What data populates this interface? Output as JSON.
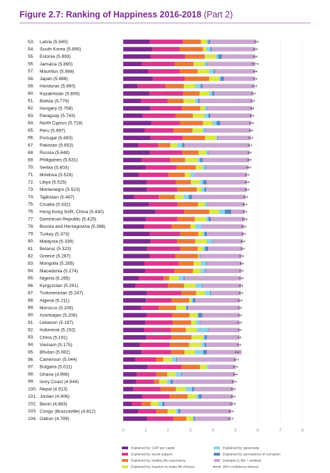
{
  "chart_data": {
    "type": "stacked-bar-horizontal",
    "title": "Figure 2.7: Ranking of Happiness 2016-2018",
    "title_suffix": "(Part 2)",
    "ranks": [
      "53.",
      "54.",
      "55.",
      "56.",
      "57.",
      "58.",
      "59.",
      "60.",
      "61.",
      "62.",
      "63.",
      "64.",
      "65.",
      "66.",
      "67.",
      "68.",
      "69.",
      "70.",
      "71.",
      "72.",
      "73.",
      "74.",
      "75.",
      "76.",
      "77.",
      "78.",
      "79.",
      "80.",
      "81.",
      "82.",
      "83.",
      "84.",
      "85.",
      "86.",
      "87.",
      "88.",
      "89.",
      "90.",
      "91.",
      "92.",
      "93.",
      "94.",
      "95.",
      "96.",
      "97.",
      "98.",
      "99.",
      "100.",
      "101.",
      "102.",
      "103.",
      "104."
    ],
    "categories": [
      "Latvia",
      "South Korea",
      "Estonia",
      "Jamaica",
      "Mauritius",
      "Japan",
      "Honduras",
      "Kazakhstan",
      "Bolivia",
      "Hungary",
      "Paraguay",
      "North Cyprus",
      "Peru",
      "Portugal",
      "Pakistan",
      "Russia",
      "Philippines",
      "Serbia",
      "Moldova",
      "Libya",
      "Montenegro",
      "Tajikistan",
      "Croatia",
      "Hong Kong SAR, China",
      "Dominican Republic",
      "Bosnia and Herzegovina",
      "Turkey",
      "Malaysia",
      "Belarus",
      "Greece",
      "Mongolia",
      "Macedonia",
      "Nigeria",
      "Kyrgyzstan",
      "Turkmenistan",
      "Algeria",
      "Morocco",
      "Azerbaijan",
      "Lebanon",
      "Indonesia",
      "China",
      "Vietnam",
      "Bhutan",
      "Cameroon",
      "Bulgaria",
      "Ghana",
      "Ivory Coast",
      "Nepal",
      "Jordan",
      "Benin",
      "Congo (Brazzaville)",
      "Gabon"
    ],
    "scores": [
      5.94,
      5.895,
      5.893,
      5.89,
      5.888,
      5.886,
      5.86,
      5.809,
      5.779,
      5.758,
      5.743,
      5.718,
      5.697,
      5.693,
      5.653,
      5.648,
      5.631,
      5.603,
      5.529,
      5.525,
      5.523,
      5.467,
      5.432,
      5.43,
      5.425,
      5.386,
      5.373,
      5.339,
      5.323,
      5.287,
      5.285,
      5.274,
      5.265,
      5.261,
      5.247,
      5.211,
      5.208,
      5.208,
      5.197,
      5.192,
      5.191,
      5.175,
      5.082,
      5.044,
      5.011,
      4.996,
      4.944,
      4.913,
      4.906,
      4.883,
      4.812,
      4.799
    ],
    "score_labels": [
      "(5.940)",
      "(5.895)",
      "(5.893)",
      "(5.890)",
      "(5.888)",
      "(5.886)",
      "(5.860)",
      "(5.809)",
      "(5.779)",
      "(5.758)",
      "(5.743)",
      "(5.718)",
      "(5.697)",
      "(5.693)",
      "(5.653)",
      "(5.648)",
      "(5.631)",
      "(5.603)",
      "(5.529)",
      "(5.525)",
      "(5.523)",
      "(5.467)",
      "(5.432)",
      "(5.430)",
      "(5.425)",
      "(5.386)",
      "(5.373)",
      "(5.339)",
      "(5.323)",
      "(5.287)",
      "(5.285)",
      "(5.274)",
      "(5.265)",
      "(5.261)",
      "(5.247)",
      "(5.211)",
      "(5.208)",
      "(5.208)",
      "(5.197)",
      "(5.192)",
      "(5.191)",
      "(5.175)",
      "(5.082)",
      "(5.044)",
      "(5.011)",
      "(4.996)",
      "(4.944)",
      "(4.913)",
      "(4.906)",
      "(4.883)",
      "(4.812)",
      "(4.799)"
    ],
    "errors": [
      0.07,
      0.07,
      0.07,
      0.13,
      0.07,
      0.06,
      0.08,
      0.07,
      0.07,
      0.07,
      0.08,
      0.08,
      0.07,
      0.08,
      0.07,
      0.06,
      0.07,
      0.08,
      0.07,
      0.08,
      0.08,
      0.07,
      0.08,
      0.07,
      0.09,
      0.08,
      0.07,
      0.07,
      0.06,
      0.08,
      0.06,
      0.07,
      0.08,
      0.07,
      0.07,
      0.08,
      0.06,
      0.06,
      0.08,
      0.06,
      0.05,
      0.06,
      0.07,
      0.09,
      0.08,
      0.08,
      0.09,
      0.08,
      0.08,
      0.1,
      0.09,
      0.1
    ],
    "series": [
      {
        "name": "Explained by: GDP per capita",
        "color": "#7a2a8c",
        "values": [
          1.187,
          1.301,
          1.237,
          0.831,
          1.12,
          1.327,
          0.642,
          1.173,
          0.776,
          1.201,
          0.855,
          1.263,
          0.96,
          1.221,
          0.677,
          1.183,
          0.807,
          1.004,
          0.685,
          1.044,
          1.051,
          0.493,
          1.155,
          1.438,
          1.015,
          0.945,
          1.183,
          1.221,
          1.067,
          1.181,
          0.948,
          0.983,
          0.696,
          0.551,
          1.052,
          1.002,
          0.801,
          1.043,
          0.987,
          0.931,
          1.029,
          0.741,
          0.813,
          0.549,
          1.092,
          0.611,
          0.569,
          0.446,
          0.837,
          0.393,
          0.673,
          1.057
        ]
      },
      {
        "name": "Explained by: social support",
        "color": "#d8378c",
        "values": [
          1.465,
          1.219,
          1.528,
          1.478,
          1.402,
          1.419,
          1.236,
          1.508,
          1.209,
          1.41,
          1.475,
          1.252,
          1.274,
          1.431,
          0.886,
          1.452,
          1.293,
          1.383,
          1.328,
          1.303,
          1.361,
          1.098,
          1.266,
          1.277,
          1.401,
          1.212,
          1.36,
          1.171,
          1.465,
          1.156,
          1.531,
          1.294,
          1.111,
          1.438,
          1.538,
          1.16,
          0.782,
          1.147,
          1.224,
          1.203,
          1.125,
          1.346,
          1.321,
          0.91,
          1.513,
          0.868,
          0.808,
          1.226,
          1.225,
          0.437,
          0.799,
          1.183
        ]
      },
      {
        "name": "Explained by: healthy life expectancy",
        "color": "#e8793a",
        "values": [
          0.812,
          1.036,
          0.874,
          0.831,
          0.798,
          1.088,
          0.828,
          0.729,
          0.706,
          0.828,
          0.777,
          1.042,
          0.854,
          0.999,
          0.535,
          0.726,
          0.657,
          0.854,
          0.739,
          0.673,
          0.871,
          0.718,
          0.914,
          1.122,
          0.779,
          0.845,
          0.808,
          0.828,
          0.789,
          0.999,
          0.667,
          0.838,
          0.245,
          0.723,
          0.657,
          0.785,
          0.782,
          0.769,
          0.815,
          0.66,
          0.893,
          0.851,
          0.604,
          0.331,
          0.815,
          0.486,
          0.232,
          0.677,
          0.815,
          0.397,
          0.508,
          0.571
        ]
      },
      {
        "name": "Explained by: freedom to make life choices",
        "color": "#dbe64a",
        "values": [
          0.264,
          0.159,
          0.495,
          0.49,
          0.498,
          0.445,
          0.507,
          0.41,
          0.511,
          0.199,
          0.514,
          0.417,
          0.455,
          0.508,
          0.313,
          0.334,
          0.558,
          0.282,
          0.245,
          0.416,
          0.197,
          0.389,
          0.296,
          0.44,
          0.497,
          0.212,
          0.195,
          0.508,
          0.235,
          0.067,
          0.317,
          0.345,
          0.426,
          0.508,
          0.394,
          0.086,
          0.418,
          0.351,
          0.216,
          0.491,
          0.521,
          0.543,
          0.457,
          0.381,
          0.311,
          0.381,
          0.352,
          0.439,
          0.383,
          0.349,
          0.372,
          0.295
        ]
      },
      {
        "name": "Explained by: generosity",
        "color": "#8fd0e4",
        "values": [
          0.075,
          0.175,
          0.103,
          0.107,
          0.215,
          0.069,
          0.246,
          0.146,
          0.137,
          0.081,
          0.184,
          0.191,
          0.083,
          0.047,
          0.22,
          0.082,
          0.117,
          0.137,
          0.181,
          0.133,
          0.142,
          0.23,
          0.119,
          0.258,
          0.113,
          0.263,
          0.083,
          0.26,
          0.094,
          0.0,
          0.235,
          0.185,
          0.215,
          0.3,
          0.244,
          0.073,
          0.036,
          0.035,
          0.166,
          0.498,
          0.058,
          0.147,
          0.37,
          0.187,
          0.081,
          0.245,
          0.154,
          0.285,
          0.11,
          0.175,
          0.105,
          0.043
        ]
      },
      {
        "name": "Explained by: perceptions of corruption",
        "color": "#5a86bd",
        "values": [
          0.064,
          0.056,
          0.161,
          0.028,
          0.06,
          0.14,
          0.078,
          0.096,
          0.064,
          0.02,
          0.08,
          0.162,
          0.027,
          0.025,
          0.098,
          0.031,
          0.107,
          0.039,
          0.0,
          0.152,
          0.08,
          0.144,
          0.022,
          0.287,
          0.101,
          0.006,
          0.106,
          0.024,
          0.142,
          0.034,
          0.038,
          0.034,
          0.041,
          0.023,
          0.028,
          0.114,
          0.076,
          0.182,
          0.027,
          0.028,
          0.1,
          0.073,
          0.167,
          0.037,
          0.004,
          0.04,
          0.09,
          0.089,
          0.13,
          0.082,
          0.093,
          0.055
        ]
      },
      {
        "name": "Dystopia (1.88) + residual",
        "color": "#c9a7cf",
        "values": [
          2.073,
          1.949,
          1.495,
          2.125,
          1.795,
          1.398,
          2.323,
          1.747,
          2.376,
          2.019,
          1.858,
          1.391,
          2.044,
          1.462,
          2.924,
          1.84,
          2.092,
          1.904,
          2.351,
          1.804,
          1.821,
          2.395,
          1.66,
          0.608,
          1.519,
          1.903,
          1.638,
          1.327,
          1.531,
          1.85,
          1.549,
          1.595,
          2.531,
          1.718,
          1.334,
          1.991,
          2.313,
          1.681,
          1.762,
          1.381,
          1.465,
          1.474,
          1.55,
          2.649,
          1.195,
          2.365,
          2.739,
          1.751,
          1.406,
          3.05,
          2.262,
          1.595
        ]
      }
    ],
    "ci_label": "95% confidence interval",
    "xlim": [
      0,
      8
    ],
    "xticks": [
      0,
      1,
      2,
      3,
      4,
      5,
      6,
      7,
      8
    ],
    "grid": true
  }
}
